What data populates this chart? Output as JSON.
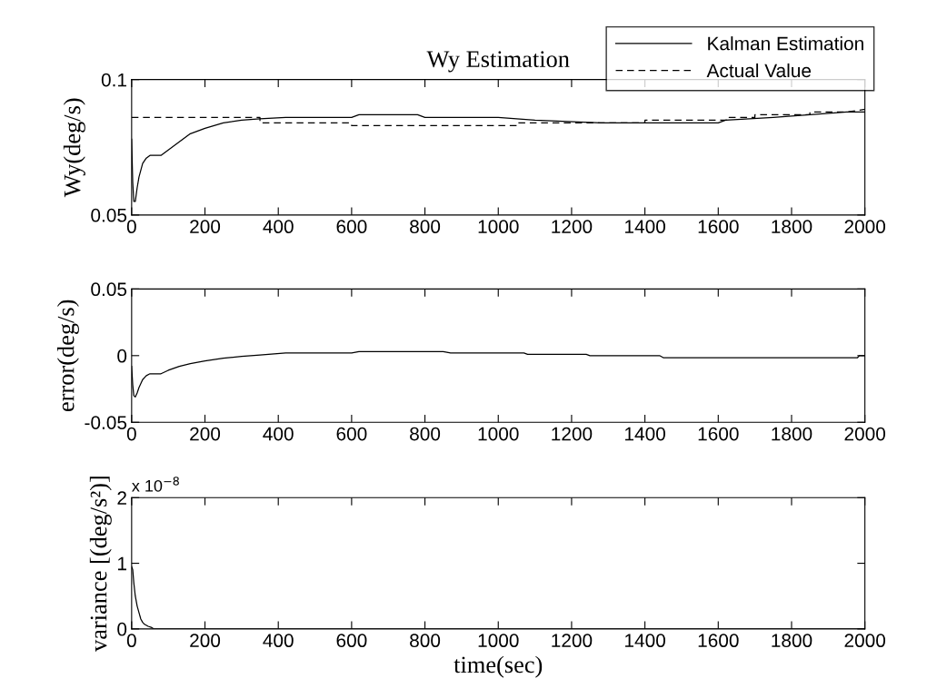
{
  "chart_data": [
    {
      "type": "line",
      "title": "Wy Estimation",
      "ylabel": "Wy(deg/s)",
      "xlim": [
        0,
        2000
      ],
      "ylim": [
        0.05,
        0.1
      ],
      "xticks": [
        0,
        200,
        400,
        600,
        800,
        1000,
        1200,
        1400,
        1600,
        1800,
        2000
      ],
      "yticks": [
        0.05,
        0.1
      ],
      "legend": "top right",
      "grid": false,
      "series": [
        {
          "name": "Kalman Estimation",
          "color": "#000000",
          "line_style": "solid",
          "x": [
            0,
            3,
            6,
            10,
            15,
            20,
            30,
            40,
            50,
            80,
            100,
            130,
            160,
            200,
            250,
            300,
            350,
            420,
            600,
            620,
            780,
            800,
            1000,
            1100,
            1280,
            1600,
            1620,
            1750,
            1850,
            1950,
            2000
          ],
          "values": [
            0.078,
            0.062,
            0.055,
            0.055,
            0.06,
            0.064,
            0.069,
            0.071,
            0.072,
            0.072,
            0.074,
            0.077,
            0.08,
            0.082,
            0.084,
            0.085,
            0.0855,
            0.086,
            0.086,
            0.087,
            0.087,
            0.086,
            0.086,
            0.085,
            0.084,
            0.084,
            0.085,
            0.086,
            0.087,
            0.088,
            0.088
          ]
        },
        {
          "name": "Actual Value",
          "color": "#000000",
          "line_style": "dashed",
          "x": [
            0,
            350,
            350,
            600,
            600,
            1050,
            1050,
            1400,
            1400,
            1630,
            1630,
            1700,
            1700,
            1850,
            1850,
            1950,
            2000
          ],
          "values": [
            0.086,
            0.086,
            0.084,
            0.084,
            0.083,
            0.083,
            0.084,
            0.084,
            0.085,
            0.085,
            0.086,
            0.086,
            0.087,
            0.087,
            0.088,
            0.088,
            0.089
          ]
        }
      ]
    },
    {
      "type": "line",
      "ylabel": "error(deg/s)",
      "xlim": [
        0,
        2000
      ],
      "ylim": [
        -0.05,
        0.05
      ],
      "xticks": [
        0,
        200,
        400,
        600,
        800,
        1000,
        1200,
        1400,
        1600,
        1800,
        2000
      ],
      "yticks": [
        -0.05,
        0,
        0.05
      ],
      "grid": false,
      "series": [
        {
          "color": "#000000",
          "line_style": "solid",
          "x": [
            0,
            3,
            6,
            10,
            15,
            20,
            30,
            40,
            50,
            80,
            100,
            130,
            160,
            200,
            250,
            300,
            350,
            420,
            600,
            620,
            850,
            870,
            1070,
            1080,
            1240,
            1250,
            1440,
            1450,
            1980,
            1985,
            2000
          ],
          "values": [
            -0.008,
            -0.022,
            -0.03,
            -0.031,
            -0.028,
            -0.024,
            -0.018,
            -0.015,
            -0.0136,
            -0.0136,
            -0.011,
            -0.008,
            -0.006,
            -0.004,
            -0.002,
            -0.0005,
            0.0005,
            0.002,
            0.002,
            0.003,
            0.003,
            0.002,
            0.002,
            0.001,
            0.001,
            0.0,
            0.0,
            -0.0015,
            -0.0015,
            0.0,
            0.0
          ]
        }
      ]
    },
    {
      "type": "line",
      "ylabel": "variance [(deg/s²)]",
      "xlabel": "time(sec)",
      "xlim": [
        0,
        2000
      ],
      "ylim": [
        0,
        2
      ],
      "xticks": [
        0,
        200,
        400,
        600,
        800,
        1000,
        1200,
        1400,
        1600,
        1800,
        2000
      ],
      "yticks": [
        0,
        1,
        2
      ],
      "grid": false,
      "annotations": [
        "x 10$^{−8}$"
      ],
      "series": [
        {
          "color": "#000000",
          "line_style": "solid",
          "x": [
            0,
            3,
            6,
            10,
            15,
            20,
            25,
            30,
            35,
            45,
            55,
            60,
            2000
          ],
          "values": [
            0.95,
            0.9,
            0.7,
            0.5,
            0.35,
            0.25,
            0.15,
            0.1,
            0.07,
            0.04,
            0.02,
            0.0,
            0.0
          ]
        }
      ]
    }
  ]
}
